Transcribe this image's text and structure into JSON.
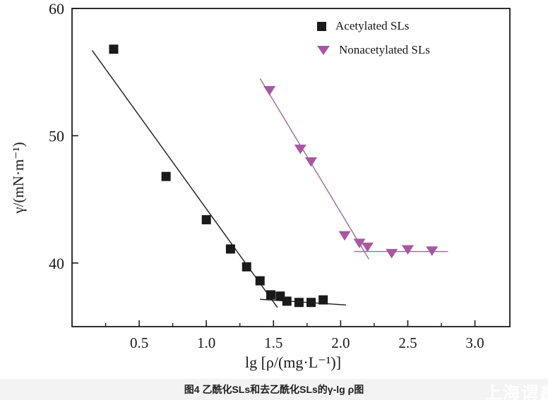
{
  "figure": {
    "caption": "图4  乙酰化SLs和去乙酰化SLs的γ-lg ρ图",
    "watermark": "上海谓鑫"
  },
  "chart_data": {
    "type": "scatter",
    "title": "",
    "xlabel": "lg [ρ/(mg·L⁻¹)]",
    "ylabel": "γ/(mN·m⁻¹)",
    "xlim": [
      0,
      3.26
    ],
    "ylim": [
      35,
      60
    ],
    "x_ticks": [
      0.5,
      1.0,
      1.5,
      2.0,
      2.5,
      3.0
    ],
    "x_minor_ticks": [
      0.25,
      0.75,
      1.25,
      1.75,
      2.25,
      2.75
    ],
    "y_ticks": [
      40,
      50,
      60
    ],
    "grid": false,
    "legend_position": "upper-right-inside",
    "frame_color": "#1a1a1a",
    "series": [
      {
        "name": "Acetylated SLs",
        "marker": "square",
        "color": "#1a1a1a",
        "points": [
          [
            0.31,
            56.8
          ],
          [
            0.7,
            46.8
          ],
          [
            1.0,
            43.4
          ],
          [
            1.18,
            41.1
          ],
          [
            1.3,
            39.7
          ],
          [
            1.4,
            38.6
          ],
          [
            1.48,
            37.5
          ],
          [
            1.55,
            37.4
          ],
          [
            1.6,
            37.0
          ],
          [
            1.69,
            36.9
          ],
          [
            1.78,
            36.9
          ],
          [
            1.87,
            37.1
          ]
        ]
      },
      {
        "name": "Nonacetylated SLs",
        "marker": "triangle-down",
        "color": "#a857a3",
        "points": [
          [
            1.47,
            53.6
          ],
          [
            1.7,
            49.0
          ],
          [
            1.78,
            48.0
          ],
          [
            2.03,
            42.2
          ],
          [
            2.14,
            41.6
          ],
          [
            2.2,
            41.3
          ],
          [
            2.38,
            40.8
          ],
          [
            2.5,
            41.1
          ],
          [
            2.68,
            41.0
          ]
        ]
      }
    ],
    "fit_lines": [
      {
        "series": "Acetylated SLs",
        "color": "#1a1a1a",
        "from": [
          0.15,
          56.7
        ],
        "to": [
          1.53,
          36.5
        ]
      },
      {
        "series": "Acetylated SLs",
        "color": "#1a1a1a",
        "from": [
          1.4,
          37.15
        ],
        "to": [
          2.04,
          36.7
        ]
      },
      {
        "series": "Nonacetylated SLs",
        "color": "#9c6a9f",
        "from": [
          1.4,
          54.5
        ],
        "to": [
          2.21,
          40.3
        ]
      },
      {
        "series": "Nonacetylated SLs",
        "color": "#9c6a9f",
        "from": [
          2.1,
          40.9
        ],
        "to": [
          2.8,
          40.9
        ]
      }
    ]
  }
}
